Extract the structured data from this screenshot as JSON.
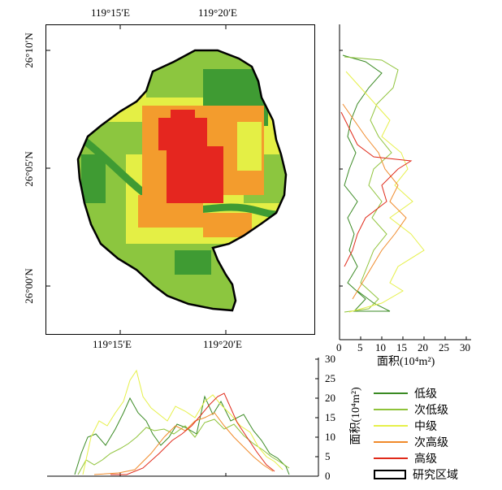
{
  "map": {
    "top_lon_labels": [
      "119°15′E",
      "119°20′E"
    ],
    "bottom_lon_labels": [
      "119°15′E",
      "119°20′E"
    ],
    "lat_labels": [
      "26°10′N",
      "26°05′N",
      "26°00′N"
    ]
  },
  "right_profile": {
    "x_ticks": [
      "0",
      "5",
      "10",
      "15",
      "20",
      "25",
      "30"
    ],
    "x_label": "面积(10⁴m²)"
  },
  "bottom_profile": {
    "y_ticks": [
      "0",
      "5",
      "10",
      "15",
      "20",
      "25",
      "30"
    ],
    "y_label": "面积(10⁴m²)"
  },
  "legend": {
    "items": [
      {
        "label": "低级",
        "color": "#3a8a23"
      },
      {
        "label": "次低级",
        "color": "#8fc33a"
      },
      {
        "label": "中级",
        "color": "#e6f04a"
      },
      {
        "label": "次高级",
        "color": "#f08a2a"
      },
      {
        "label": "高级",
        "color": "#e02a1a"
      }
    ],
    "boundary_label": "研究区域"
  },
  "colors": {
    "low": "#3f9b33",
    "sublow": "#8cc63f",
    "mid": "#e4ef45",
    "subhigh": "#f39c2d",
    "high": "#e5261f"
  }
}
